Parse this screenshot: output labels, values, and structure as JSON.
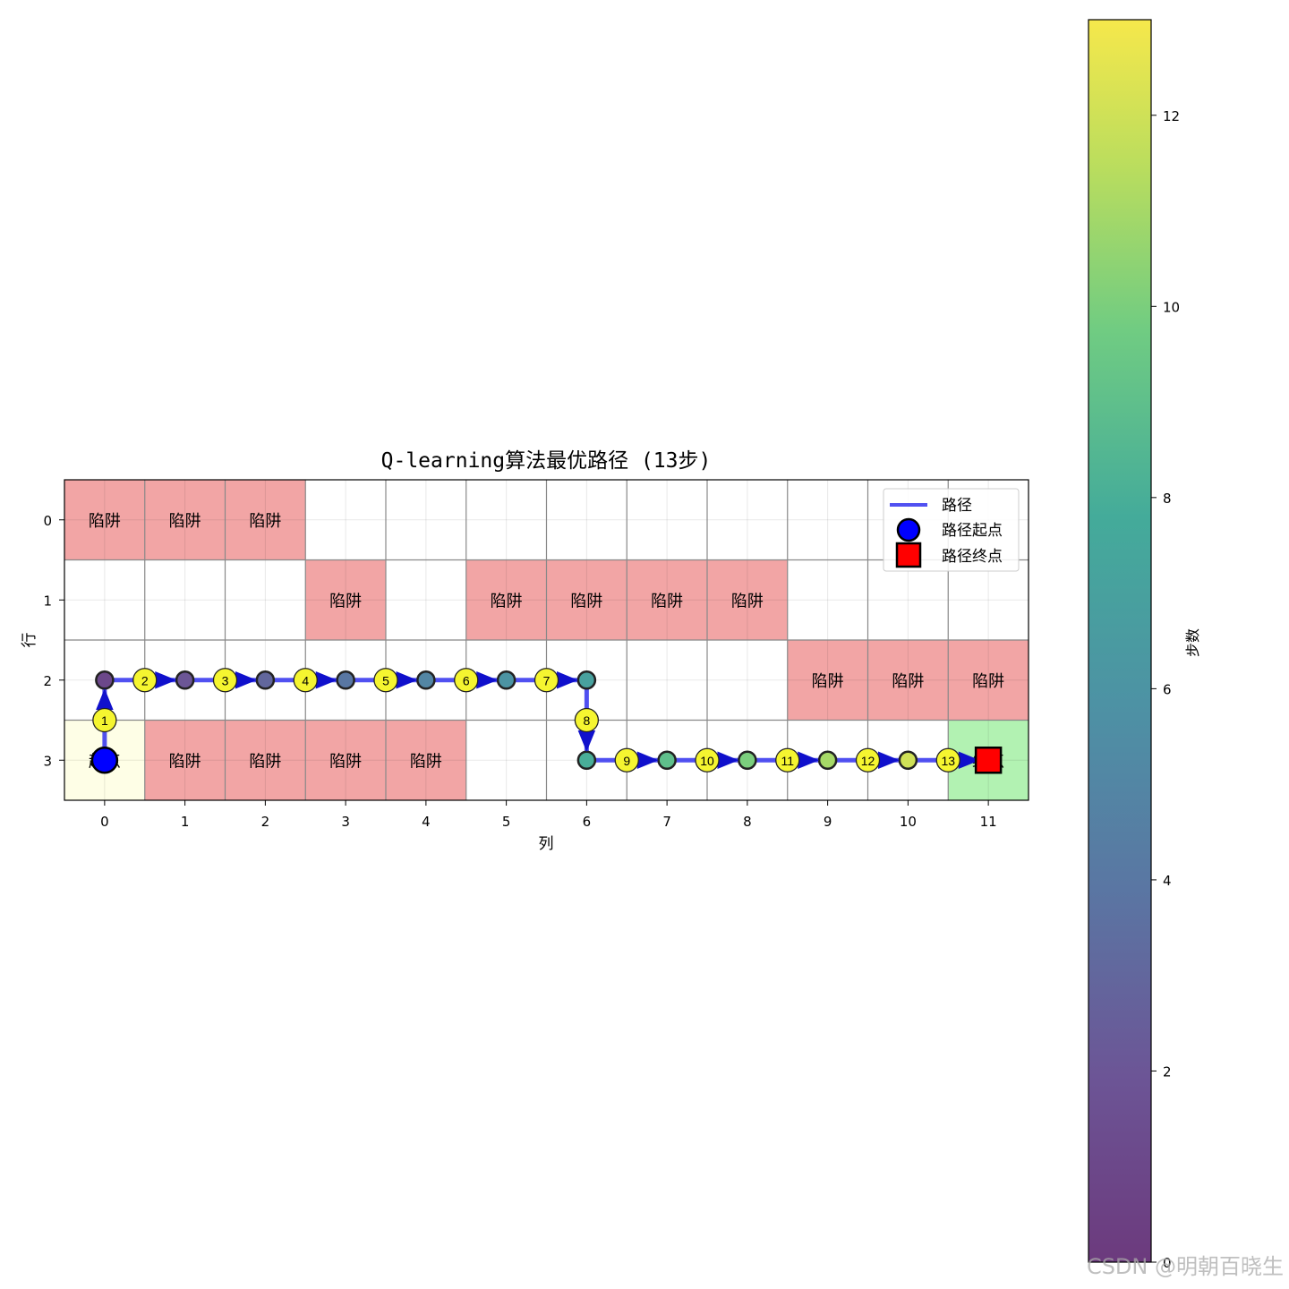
{
  "chart_data": {
    "type": "grid-path",
    "title": "Q-learning算法最优路径 (13步)",
    "xlabel": "列",
    "ylabel": "行",
    "rows": 4,
    "cols": 12,
    "x_ticks": [
      "0",
      "1",
      "2",
      "3",
      "4",
      "5",
      "6",
      "7",
      "8",
      "9",
      "10",
      "11"
    ],
    "y_ticks": [
      "0",
      "1",
      "2",
      "3"
    ],
    "grid": true,
    "trap_label": "陷阱",
    "start_label": "起点",
    "goal_label": "终点",
    "traps": [
      [
        0,
        0
      ],
      [
        0,
        1
      ],
      [
        0,
        2
      ],
      [
        1,
        3
      ],
      [
        1,
        5
      ],
      [
        1,
        6
      ],
      [
        1,
        7
      ],
      [
        1,
        8
      ],
      [
        2,
        9
      ],
      [
        2,
        10
      ],
      [
        2,
        11
      ],
      [
        3,
        1
      ],
      [
        3,
        2
      ],
      [
        3,
        3
      ],
      [
        3,
        4
      ]
    ],
    "start_cell": [
      3,
      0
    ],
    "goal_cell": [
      3,
      11
    ],
    "path": [
      [
        3,
        0
      ],
      [
        2,
        0
      ],
      [
        2,
        1
      ],
      [
        2,
        2
      ],
      [
        2,
        3
      ],
      [
        2,
        4
      ],
      [
        2,
        5
      ],
      [
        2,
        6
      ],
      [
        3,
        6
      ],
      [
        3,
        7
      ],
      [
        3,
        8
      ],
      [
        3,
        9
      ],
      [
        3,
        10
      ],
      [
        3,
        11
      ]
    ],
    "step_labels": [
      "1",
      "2",
      "3",
      "4",
      "5",
      "6",
      "7",
      "8",
      "9",
      "10",
      "11",
      "12",
      "13"
    ],
    "legend": {
      "position": "top-right",
      "entries": [
        "路径",
        "路径起点",
        "路径终点"
      ]
    },
    "colorbar": {
      "label": "步数",
      "min": 0,
      "max": 13,
      "ticks": [
        "0",
        "2",
        "4",
        "6",
        "8",
        "10",
        "12"
      ],
      "colormap": "viridis"
    },
    "colors": {
      "trap": "#f2a5a5",
      "start_cell": "#fefee6",
      "goal_cell": "#b2f2b2",
      "path_line": "#3333ee",
      "arrow": "#1010cc",
      "path_start_marker": "#0000ff",
      "path_end_marker": "#ff0000",
      "step_badge": "#f5f530"
    }
  },
  "watermark": "CSDN @明朝百晓生"
}
